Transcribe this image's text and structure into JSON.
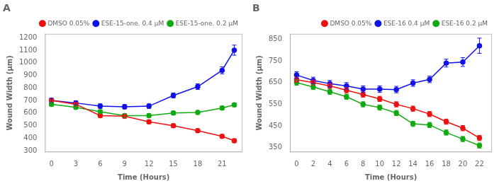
{
  "chart_data": [
    {
      "type": "line",
      "title": "A",
      "xlabel": "Time (Hours)",
      "ylabel": "Wound Width (μm)",
      "xlim": [
        -0.8,
        23.5
      ],
      "ylim": [
        290,
        1230
      ],
      "xticks": [
        0,
        3,
        6,
        9,
        12,
        15,
        18,
        21
      ],
      "yticks": [
        300,
        400,
        500,
        600,
        700,
        800,
        900,
        1000,
        1100,
        1200
      ],
      "grid": false,
      "legend": "upper right",
      "marker": "circle",
      "x": [
        0,
        3,
        6,
        9,
        12,
        15,
        18,
        21,
        22.5
      ],
      "series": [
        {
          "name": "DMSO 0.05%",
          "color": "#ee1111",
          "values": [
            700,
            670,
            580,
            575,
            530,
            500,
            460,
            415,
            380
          ],
          "yerr": [
            15,
            15,
            15,
            15,
            15,
            15,
            15,
            15,
            15
          ]
        },
        {
          "name": "ESE-15-one. 0.4 μM",
          "color": "#1111ee",
          "values": [
            700,
            680,
            655,
            650,
            655,
            740,
            810,
            940,
            1100
          ],
          "yerr": [
            18,
            18,
            18,
            18,
            18,
            20,
            22,
            28,
            40
          ]
        },
        {
          "name": "ESE-15-one. 0.2 μM",
          "color": "#11aa11",
          "values": [
            670,
            645,
            610,
            580,
            580,
            600,
            605,
            640,
            665
          ],
          "yerr": [
            15,
            15,
            15,
            15,
            15,
            15,
            15,
            15,
            15
          ]
        }
      ]
    },
    {
      "type": "line",
      "title": "B",
      "xlabel": "Time (Hours)",
      "ylabel": "Wound Width (μm)",
      "xlim": [
        -0.8,
        23.5
      ],
      "ylim": [
        330,
        875
      ],
      "xticks": [
        0,
        2,
        4,
        6,
        8,
        10,
        12,
        14,
        16,
        18,
        20,
        22
      ],
      "yticks": [
        350,
        450,
        550,
        650,
        750,
        850
      ],
      "grid": false,
      "legend": "upper right",
      "marker": "circle",
      "x": [
        0,
        2,
        4,
        6,
        8,
        10,
        12,
        14,
        16,
        18,
        20,
        22
      ],
      "series": [
        {
          "name": "DMSO 0.05%",
          "color": "#ee1111",
          "values": [
            663,
            650,
            635,
            615,
            595,
            575,
            550,
            530,
            505,
            470,
            440,
            395
          ],
          "yerr": [
            12,
            12,
            12,
            12,
            12,
            12,
            12,
            12,
            12,
            12,
            12,
            12
          ]
        },
        {
          "name": "ESE-16 0.4 μM",
          "color": "#1111ee",
          "values": [
            685,
            660,
            645,
            635,
            620,
            620,
            618,
            648,
            665,
            740,
            745,
            820
          ],
          "yerr": [
            15,
            15,
            15,
            15,
            15,
            15,
            15,
            15,
            15,
            18,
            20,
            35
          ]
        },
        {
          "name": "ESE-16 0.2 μM",
          "color": "#11aa11",
          "values": [
            650,
            630,
            608,
            585,
            550,
            535,
            510,
            460,
            455,
            420,
            390,
            360
          ],
          "yerr": [
            12,
            12,
            12,
            12,
            12,
            12,
            12,
            12,
            12,
            12,
            12,
            12
          ]
        }
      ]
    }
  ]
}
